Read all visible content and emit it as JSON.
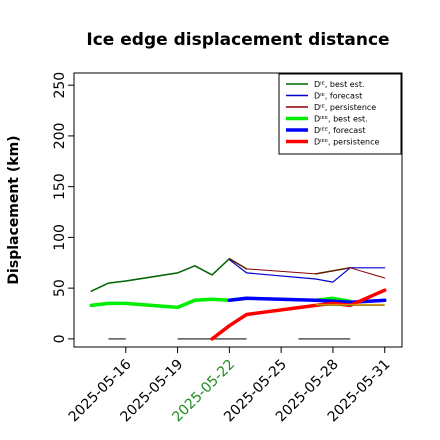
{
  "chart_data": {
    "type": "line",
    "title": "Ice edge displacement distance",
    "ylabel": "Displacement (km)",
    "xlabel": "",
    "ylim": [
      -8,
      262
    ],
    "xlim": [
      "2025-05-13",
      "2025-06-01"
    ],
    "y_ticks": [
      0,
      50,
      100,
      150,
      200,
      250
    ],
    "x_ticks": [
      {
        "date": "2025-05-16",
        "label": "2025-05-16",
        "color": "#000000"
      },
      {
        "date": "2025-05-19",
        "label": "2025-05-19",
        "color": "#000000"
      },
      {
        "date": "2025-05-22",
        "label": "2025-05-22",
        "color": "#228B22"
      },
      {
        "date": "2025-05-25",
        "label": "2025-05-25",
        "color": "#000000"
      },
      {
        "date": "2025-05-28",
        "label": "2025-05-28",
        "color": "#000000"
      },
      {
        "date": "2025-05-31",
        "label": "2025-05-31",
        "color": "#000000"
      }
    ],
    "legend_position": "top-right",
    "grid": false,
    "series": [
      {
        "name": "Dᴵᴱ, best est.",
        "color": "#006400",
        "width": 1.5,
        "segments": [
          [
            [
              "2025-05-14",
              47
            ],
            [
              "2025-05-15",
              55
            ],
            [
              "2025-05-16",
              57
            ],
            [
              "2025-05-19",
              65
            ],
            [
              "2025-05-20",
              72
            ],
            [
              "2025-05-21",
              63
            ],
            [
              "2025-05-22",
              79
            ],
            [
              "2025-05-23",
              69
            ]
          ],
          [
            [
              "2025-05-27",
              64
            ],
            [
              "2025-05-29",
              70
            ]
          ]
        ]
      },
      {
        "name": "Dᴵᴱ, forecast",
        "color": "#0000CD",
        "width": 1.2,
        "segments": [
          [
            [
              "2025-05-22",
              78
            ],
            [
              "2025-05-23",
              65
            ],
            [
              "2025-05-27",
              59
            ],
            [
              "2025-05-28",
              56
            ],
            [
              "2025-05-29",
              70
            ],
            [
              "2025-05-31",
              70
            ]
          ]
        ]
      },
      {
        "name": "Dᴵᴱ, persistence",
        "color": "#8B0000",
        "width": 1.0,
        "segments": [
          [
            [
              "2025-05-22",
              79
            ],
            [
              "2025-05-23",
              69
            ],
            [
              "2025-05-27",
              64
            ],
            [
              "2025-05-29",
              70
            ],
            [
              "2025-05-31",
              60
            ]
          ]
        ]
      },
      {
        "name": "Dᴵᴱᴱ, best est.",
        "color": "#00EE00",
        "width": 3.5,
        "segments": [
          [
            [
              "2025-05-14",
              33
            ],
            [
              "2025-05-15",
              35
            ],
            [
              "2025-05-16",
              35
            ],
            [
              "2025-05-19",
              31
            ],
            [
              "2025-05-20",
              38
            ],
            [
              "2025-05-21",
              39
            ],
            [
              "2025-05-22",
              38
            ],
            [
              "2025-05-23",
              40
            ]
          ],
          [
            [
              "2025-05-27",
              38
            ],
            [
              "2025-05-28",
              40
            ],
            [
              "2025-05-29",
              37
            ]
          ]
        ]
      },
      {
        "name": "Dᴵᴱᴱ, forecast",
        "color": "#0000FF",
        "width": 3.5,
        "segments": [
          [
            [
              "2025-05-22",
              38
            ],
            [
              "2025-05-23",
              40
            ],
            [
              "2025-05-27",
              38
            ],
            [
              "2025-05-28",
              37
            ],
            [
              "2025-05-29",
              36
            ],
            [
              "2025-05-31",
              38
            ]
          ]
        ]
      },
      {
        "name": "Dᴵᴱᴱ, persistence",
        "color": "#FF0000",
        "width": 3.5,
        "segments": [
          [
            [
              "2025-05-21",
              0
            ],
            [
              "2025-05-22",
              13
            ],
            [
              "2025-05-23",
              24
            ],
            [
              "2025-05-27",
              33
            ],
            [
              "2025-05-28",
              35
            ],
            [
              "2025-05-29",
              33
            ],
            [
              "2025-05-31",
              48
            ]
          ]
        ]
      }
    ],
    "overlay_lines": [
      {
        "color": "#FF8C00",
        "width": 1.0,
        "points": [
          [
            "2025-05-27",
            34
          ],
          [
            "2025-05-31",
            34
          ]
        ]
      },
      {
        "color": "#808000",
        "width": 1.0,
        "points": [
          [
            "2025-05-27",
            33
          ],
          [
            "2025-05-31",
            33
          ]
        ]
      }
    ],
    "baseline_markers": {
      "color": "#555555",
      "value": 0,
      "ranges": [
        [
          "2025-05-15",
          "2025-05-16"
        ],
        [
          "2025-05-19",
          "2025-05-23"
        ],
        [
          "2025-05-26",
          "2025-05-29"
        ]
      ]
    }
  }
}
